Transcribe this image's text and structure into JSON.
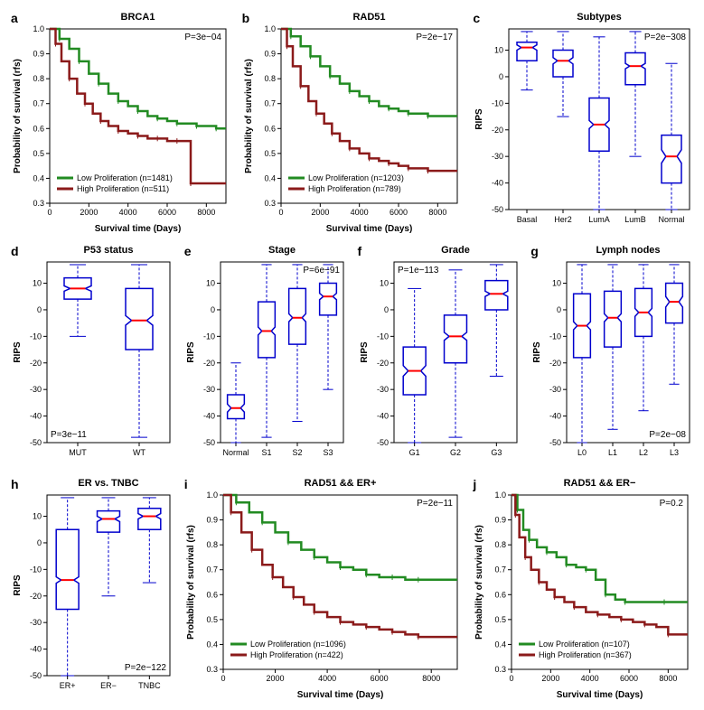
{
  "colors": {
    "low": "#228b22",
    "high": "#8b1a1a",
    "box_stroke": "#0000cd",
    "median": "#ff0000",
    "axis": "#000000",
    "bg": "#ffffff"
  },
  "font": {
    "title_size": 11,
    "label_size": 10,
    "tick_size": 9,
    "legend_size": 9,
    "panel_label_size": 14
  },
  "panels": {
    "a": {
      "label": "a",
      "type": "km",
      "title": "BRCA1",
      "pvalue": "P=3e−04",
      "pval_pos": "top-right",
      "xlabel": "Survival time (Days)",
      "ylabel": "Probability of survival (rfs)",
      "xlim": [
        0,
        9000
      ],
      "ylim": [
        0.3,
        1.0
      ],
      "xticks": [
        0,
        2000,
        4000,
        6000,
        8000
      ],
      "yticks": [
        0.3,
        0.4,
        0.5,
        0.6,
        0.7,
        0.8,
        0.9,
        1.0
      ],
      "legend_pos": "bottom-left",
      "series": [
        {
          "name": "Low Proliferation (n=1481)",
          "color_key": "low",
          "points": [
            [
              0,
              1.0
            ],
            [
              500,
              0.96
            ],
            [
              1000,
              0.92
            ],
            [
              1500,
              0.87
            ],
            [
              2000,
              0.82
            ],
            [
              2500,
              0.78
            ],
            [
              3000,
              0.74
            ],
            [
              3500,
              0.71
            ],
            [
              4000,
              0.69
            ],
            [
              4500,
              0.67
            ],
            [
              5000,
              0.65
            ],
            [
              5500,
              0.64
            ],
            [
              6000,
              0.63
            ],
            [
              6500,
              0.62
            ],
            [
              7000,
              0.62
            ],
            [
              7500,
              0.61
            ],
            [
              8000,
              0.61
            ],
            [
              8500,
              0.6
            ],
            [
              9000,
              0.6
            ]
          ]
        },
        {
          "name": "High Proliferation (n=511)",
          "color_key": "high",
          "points": [
            [
              0,
              1.0
            ],
            [
              300,
              0.94
            ],
            [
              600,
              0.87
            ],
            [
              1000,
              0.8
            ],
            [
              1400,
              0.74
            ],
            [
              1800,
              0.7
            ],
            [
              2200,
              0.66
            ],
            [
              2600,
              0.63
            ],
            [
              3000,
              0.61
            ],
            [
              3500,
              0.59
            ],
            [
              4000,
              0.58
            ],
            [
              4500,
              0.57
            ],
            [
              5000,
              0.56
            ],
            [
              5500,
              0.56
            ],
            [
              6000,
              0.55
            ],
            [
              6500,
              0.55
            ],
            [
              7000,
              0.55
            ],
            [
              7200,
              0.38
            ],
            [
              8000,
              0.38
            ],
            [
              9000,
              0.38
            ]
          ]
        }
      ]
    },
    "b": {
      "label": "b",
      "type": "km",
      "title": "RAD51",
      "pvalue": "P=2e−17",
      "pval_pos": "top-right",
      "xlabel": "Survival time (Days)",
      "ylabel": "Probability of survival (rfs)",
      "xlim": [
        0,
        9000
      ],
      "ylim": [
        0.3,
        1.0
      ],
      "xticks": [
        0,
        2000,
        4000,
        6000,
        8000
      ],
      "yticks": [
        0.3,
        0.4,
        0.5,
        0.6,
        0.7,
        0.8,
        0.9,
        1.0
      ],
      "legend_pos": "bottom-left",
      "series": [
        {
          "name": "Low Proliferation (n=1203)",
          "color_key": "low",
          "points": [
            [
              0,
              1.0
            ],
            [
              500,
              0.97
            ],
            [
              1000,
              0.93
            ],
            [
              1500,
              0.89
            ],
            [
              2000,
              0.85
            ],
            [
              2500,
              0.81
            ],
            [
              3000,
              0.78
            ],
            [
              3500,
              0.75
            ],
            [
              4000,
              0.73
            ],
            [
              4500,
              0.71
            ],
            [
              5000,
              0.69
            ],
            [
              5500,
              0.68
            ],
            [
              6000,
              0.67
            ],
            [
              6500,
              0.66
            ],
            [
              7000,
              0.66
            ],
            [
              7500,
              0.65
            ],
            [
              8000,
              0.65
            ],
            [
              9000,
              0.65
            ]
          ]
        },
        {
          "name": "High Proliferation (n=789)",
          "color_key": "high",
          "points": [
            [
              0,
              1.0
            ],
            [
              300,
              0.93
            ],
            [
              600,
              0.85
            ],
            [
              1000,
              0.77
            ],
            [
              1400,
              0.71
            ],
            [
              1800,
              0.66
            ],
            [
              2200,
              0.62
            ],
            [
              2600,
              0.58
            ],
            [
              3000,
              0.55
            ],
            [
              3500,
              0.52
            ],
            [
              4000,
              0.5
            ],
            [
              4500,
              0.48
            ],
            [
              5000,
              0.47
            ],
            [
              5500,
              0.46
            ],
            [
              6000,
              0.45
            ],
            [
              6500,
              0.44
            ],
            [
              7000,
              0.44
            ],
            [
              7500,
              0.43
            ],
            [
              8000,
              0.43
            ],
            [
              9000,
              0.43
            ]
          ]
        }
      ]
    },
    "c": {
      "label": "c",
      "type": "box",
      "title": "Subtypes",
      "pvalue": "P=2e−308",
      "pval_pos": "top-right",
      "ylabel": "RIPS",
      "ylim": [
        -50,
        18
      ],
      "yticks": [
        -50,
        -40,
        -30,
        -20,
        -10,
        0,
        10
      ],
      "categories": [
        "Basal",
        "Her2",
        "LumA",
        "LumB",
        "Normal"
      ],
      "boxes": [
        {
          "min": -5,
          "q1": 6,
          "median": 11,
          "q3": 13,
          "max": 17,
          "notch": 1.0
        },
        {
          "min": -15,
          "q1": 0,
          "median": 6,
          "q3": 10,
          "max": 17,
          "notch": 1.2
        },
        {
          "min": -50,
          "q1": -28,
          "median": -18,
          "q3": -8,
          "max": 15,
          "notch": 1.5
        },
        {
          "min": -30,
          "q1": -3,
          "median": 4,
          "q3": 9,
          "max": 17,
          "notch": 1.0
        },
        {
          "min": -50,
          "q1": -40,
          "median": -30,
          "q3": -22,
          "max": 5,
          "notch": 2.5
        }
      ]
    },
    "d": {
      "label": "d",
      "type": "box",
      "title": "P53 status",
      "pvalue": "P=3e−11",
      "pval_pos": "bottom-left",
      "ylabel": "RIPS",
      "ylim": [
        -50,
        18
      ],
      "yticks": [
        -50,
        -40,
        -30,
        -20,
        -10,
        0,
        10
      ],
      "categories": [
        "MUT",
        "WT"
      ],
      "boxes": [
        {
          "min": -10,
          "q1": 4,
          "median": 8,
          "q3": 12,
          "max": 17,
          "notch": 1.0
        },
        {
          "min": -48,
          "q1": -15,
          "median": -4,
          "q3": 8,
          "max": 17,
          "notch": 1.8
        }
      ]
    },
    "e": {
      "label": "e",
      "type": "box",
      "title": "Stage",
      "pvalue": "P=6e−91",
      "pval_pos": "top-right",
      "ylabel": "RIPS",
      "ylim": [
        -50,
        18
      ],
      "yticks": [
        -50,
        -40,
        -30,
        -20,
        -10,
        0,
        10
      ],
      "categories": [
        "Normal",
        "S1",
        "S2",
        "S3"
      ],
      "boxes": [
        {
          "min": -50,
          "q1": -41,
          "median": -37,
          "q3": -32,
          "max": -20,
          "notch": 1.5
        },
        {
          "min": -48,
          "q1": -18,
          "median": -8,
          "q3": 3,
          "max": 17,
          "notch": 1.5
        },
        {
          "min": -42,
          "q1": -13,
          "median": -3,
          "q3": 8,
          "max": 17,
          "notch": 1.5
        },
        {
          "min": -30,
          "q1": -2,
          "median": 5,
          "q3": 10,
          "max": 17,
          "notch": 1.2
        }
      ]
    },
    "f": {
      "label": "f",
      "type": "box",
      "title": "Grade",
      "pvalue": "P=1e−113",
      "pval_pos": "top-left",
      "ylabel": "RIPS",
      "ylim": [
        -50,
        18
      ],
      "yticks": [
        -50,
        -40,
        -30,
        -20,
        -10,
        0,
        10
      ],
      "categories": [
        "G1",
        "G2",
        "G3"
      ],
      "boxes": [
        {
          "min": -50,
          "q1": -32,
          "median": -23,
          "q3": -14,
          "max": 8,
          "notch": 2.0
        },
        {
          "min": -48,
          "q1": -20,
          "median": -10,
          "q3": -2,
          "max": 15,
          "notch": 1.5
        },
        {
          "min": -25,
          "q1": 0,
          "median": 6,
          "q3": 11,
          "max": 17,
          "notch": 1.0
        }
      ]
    },
    "g": {
      "label": "g",
      "type": "box",
      "title": "Lymph nodes",
      "pvalue": "P=2e−08",
      "pval_pos": "bottom-right",
      "ylabel": "RIPS",
      "ylim": [
        -50,
        18
      ],
      "yticks": [
        -50,
        -40,
        -30,
        -20,
        -10,
        0,
        10
      ],
      "categories": [
        "L0",
        "L1",
        "L2",
        "L3"
      ],
      "boxes": [
        {
          "min": -50,
          "q1": -18,
          "median": -6,
          "q3": 6,
          "max": 17,
          "notch": 1.5
        },
        {
          "min": -45,
          "q1": -14,
          "median": -3,
          "q3": 7,
          "max": 17,
          "notch": 1.5
        },
        {
          "min": -38,
          "q1": -10,
          "median": -1,
          "q3": 8,
          "max": 17,
          "notch": 1.5
        },
        {
          "min": -28,
          "q1": -5,
          "median": 3,
          "q3": 10,
          "max": 17,
          "notch": 2.0
        }
      ]
    },
    "h": {
      "label": "h",
      "type": "box",
      "title": "ER vs. TNBC",
      "pvalue": "P=2e−122",
      "pval_pos": "bottom-right",
      "ylabel": "RIPS",
      "ylim": [
        -50,
        18
      ],
      "yticks": [
        -50,
        -40,
        -30,
        -20,
        -10,
        0,
        10
      ],
      "categories": [
        "ER+",
        "ER−",
        "TNBC"
      ],
      "boxes": [
        {
          "min": -50,
          "q1": -25,
          "median": -14,
          "q3": 5,
          "max": 17,
          "notch": 1.2
        },
        {
          "min": -20,
          "q1": 4,
          "median": 9,
          "q3": 12,
          "max": 17,
          "notch": 1.0
        },
        {
          "min": -15,
          "q1": 5,
          "median": 10,
          "q3": 13,
          "max": 17,
          "notch": 1.0
        }
      ]
    },
    "i": {
      "label": "i",
      "type": "km",
      "title": "RAD51 && ER+",
      "pvalue": "P=2e−11",
      "pval_pos": "top-right",
      "xlabel": "Survival time (Days)",
      "ylabel": "Probability of survival (rfs)",
      "xlim": [
        0,
        9000
      ],
      "ylim": [
        0.3,
        1.0
      ],
      "xticks": [
        0,
        2000,
        4000,
        6000,
        8000
      ],
      "yticks": [
        0.3,
        0.4,
        0.5,
        0.6,
        0.7,
        0.8,
        0.9,
        1.0
      ],
      "legend_pos": "bottom-left",
      "series": [
        {
          "name": "Low Proliferation (n=1096)",
          "color_key": "low",
          "points": [
            [
              0,
              1.0
            ],
            [
              500,
              0.97
            ],
            [
              1000,
              0.93
            ],
            [
              1500,
              0.89
            ],
            [
              2000,
              0.85
            ],
            [
              2500,
              0.81
            ],
            [
              3000,
              0.78
            ],
            [
              3500,
              0.75
            ],
            [
              4000,
              0.73
            ],
            [
              4500,
              0.71
            ],
            [
              5000,
              0.7
            ],
            [
              5500,
              0.68
            ],
            [
              6000,
              0.67
            ],
            [
              6500,
              0.67
            ],
            [
              7000,
              0.66
            ],
            [
              7500,
              0.66
            ],
            [
              8000,
              0.66
            ],
            [
              9000,
              0.66
            ]
          ]
        },
        {
          "name": "High Proliferation (n=422)",
          "color_key": "high",
          "points": [
            [
              0,
              1.0
            ],
            [
              300,
              0.93
            ],
            [
              700,
              0.85
            ],
            [
              1100,
              0.78
            ],
            [
              1500,
              0.72
            ],
            [
              1900,
              0.67
            ],
            [
              2300,
              0.63
            ],
            [
              2700,
              0.59
            ],
            [
              3100,
              0.56
            ],
            [
              3500,
              0.53
            ],
            [
              4000,
              0.51
            ],
            [
              4500,
              0.49
            ],
            [
              5000,
              0.48
            ],
            [
              5500,
              0.47
            ],
            [
              6000,
              0.46
            ],
            [
              6500,
              0.45
            ],
            [
              7000,
              0.44
            ],
            [
              7500,
              0.43
            ],
            [
              8000,
              0.43
            ],
            [
              9000,
              0.43
            ]
          ]
        }
      ]
    },
    "j": {
      "label": "j",
      "type": "km",
      "title": "RAD51 && ER−",
      "pvalue": "P=0.2",
      "pval_pos": "top-right",
      "xlabel": "Survival time (Days)",
      "ylabel": "Probability of survival (rfs)",
      "xlim": [
        0,
        9000
      ],
      "ylim": [
        0.3,
        1.0
      ],
      "xticks": [
        0,
        2000,
        4000,
        6000,
        8000
      ],
      "yticks": [
        0.3,
        0.4,
        0.5,
        0.6,
        0.7,
        0.8,
        0.9,
        1.0
      ],
      "legend_pos": "bottom-left",
      "series": [
        {
          "name": "Low Proliferation (n=107)",
          "color_key": "low",
          "points": [
            [
              0,
              1.0
            ],
            [
              300,
              0.94
            ],
            [
              600,
              0.86
            ],
            [
              900,
              0.82
            ],
            [
              1300,
              0.79
            ],
            [
              1800,
              0.77
            ],
            [
              2300,
              0.75
            ],
            [
              2800,
              0.72
            ],
            [
              3300,
              0.71
            ],
            [
              3800,
              0.7
            ],
            [
              4300,
              0.66
            ],
            [
              4800,
              0.6
            ],
            [
              5300,
              0.58
            ],
            [
              5800,
              0.57
            ],
            [
              6800,
              0.57
            ],
            [
              7800,
              0.57
            ],
            [
              9000,
              0.57
            ]
          ]
        },
        {
          "name": "High Proliferation (n=367)",
          "color_key": "high",
          "points": [
            [
              0,
              1.0
            ],
            [
              200,
              0.92
            ],
            [
              400,
              0.83
            ],
            [
              700,
              0.75
            ],
            [
              1000,
              0.7
            ],
            [
              1400,
              0.65
            ],
            [
              1800,
              0.62
            ],
            [
              2200,
              0.59
            ],
            [
              2700,
              0.57
            ],
            [
              3200,
              0.55
            ],
            [
              3800,
              0.53
            ],
            [
              4400,
              0.52
            ],
            [
              5000,
              0.51
            ],
            [
              5600,
              0.5
            ],
            [
              6200,
              0.49
            ],
            [
              6800,
              0.48
            ],
            [
              7400,
              0.47
            ],
            [
              8000,
              0.44
            ],
            [
              9000,
              0.44
            ]
          ]
        }
      ]
    }
  }
}
